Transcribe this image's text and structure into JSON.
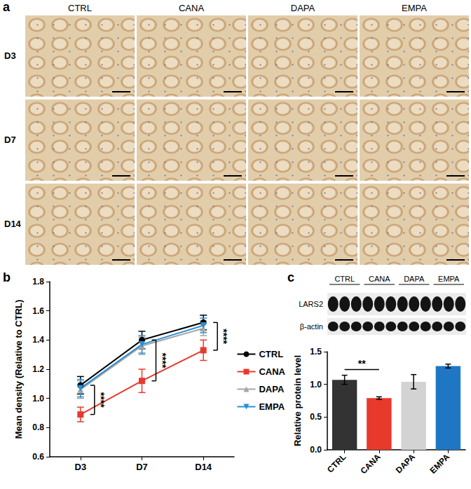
{
  "figure": {
    "panel_labels": [
      "a",
      "b",
      "c"
    ],
    "micrographs": {
      "columns": [
        "CTRL",
        "CANA",
        "DAPA",
        "EMPA"
      ],
      "rows": [
        "D3",
        "D7",
        "D14"
      ]
    },
    "western_blot": {
      "lanes": [
        "CTRL",
        "CANA",
        "DAPA",
        "EMPA"
      ],
      "proteins": [
        "LARS2",
        "β-actin"
      ]
    }
  },
  "chart_data": [
    {
      "type": "line",
      "categories": [
        "D3",
        "D7",
        "D14"
      ],
      "y_label": "Mean density (Relative to CTRL)",
      "ylim": [
        0.6,
        1.8
      ],
      "yticks": [
        0.6,
        0.8,
        {
          "value": 1.0,
          "label": "1.0"
        },
        1.2,
        1.4,
        1.6,
        1.8
      ],
      "grid": false,
      "legend": "right",
      "series": [
        {
          "name": "CTRL",
          "color": "#000000",
          "marker": "circle",
          "values": [
            1.09,
            1.4,
            1.52
          ],
          "errors": [
            0.06,
            0.06,
            0.05
          ]
        },
        {
          "name": "CANA",
          "color": "#e8392d",
          "marker": "square",
          "values": [
            0.89,
            1.12,
            1.33
          ],
          "errors": [
            0.05,
            0.08,
            0.07
          ]
        },
        {
          "name": "DAPA",
          "color": "#a6a6a6",
          "marker": "triangle",
          "values": [
            1.06,
            1.36,
            1.48
          ],
          "errors": [
            0.06,
            0.06,
            0.05
          ]
        },
        {
          "name": "EMPA",
          "color": "#2a8fd6",
          "marker": "triangle-down",
          "values": [
            1.07,
            1.37,
            1.5
          ],
          "errors": [
            0.06,
            0.06,
            0.05
          ]
        }
      ],
      "annotations": [
        {
          "text": "****",
          "category": "D3",
          "between": [
            "CTRL",
            "CANA"
          ]
        },
        {
          "text": "****",
          "category": "D7",
          "between": [
            "CTRL",
            "CANA"
          ]
        },
        {
          "text": "****",
          "category": "D14",
          "between": [
            "CTRL",
            "CANA"
          ]
        }
      ]
    },
    {
      "type": "bar",
      "categories": [
        "CTRL",
        "CANA",
        "DAPA",
        "EMPA"
      ],
      "values": [
        1.07,
        0.79,
        1.04,
        1.28
      ],
      "errors": [
        0.07,
        0.02,
        0.11,
        0.03
      ],
      "colors": [
        "#333333",
        "#e8392d",
        "#d3d3d3",
        "#1f77c4"
      ],
      "y_label": "Relative protein level",
      "ylim": [
        0,
        1.5
      ],
      "yticks": [
        {
          "value": 0,
          "label": "0.0"
        },
        0.5,
        {
          "value": 1,
          "label": "1.0"
        },
        1.5
      ],
      "grid": false,
      "annotations": [
        {
          "text": "**",
          "between": [
            "CTRL",
            "CANA"
          ]
        }
      ]
    }
  ]
}
